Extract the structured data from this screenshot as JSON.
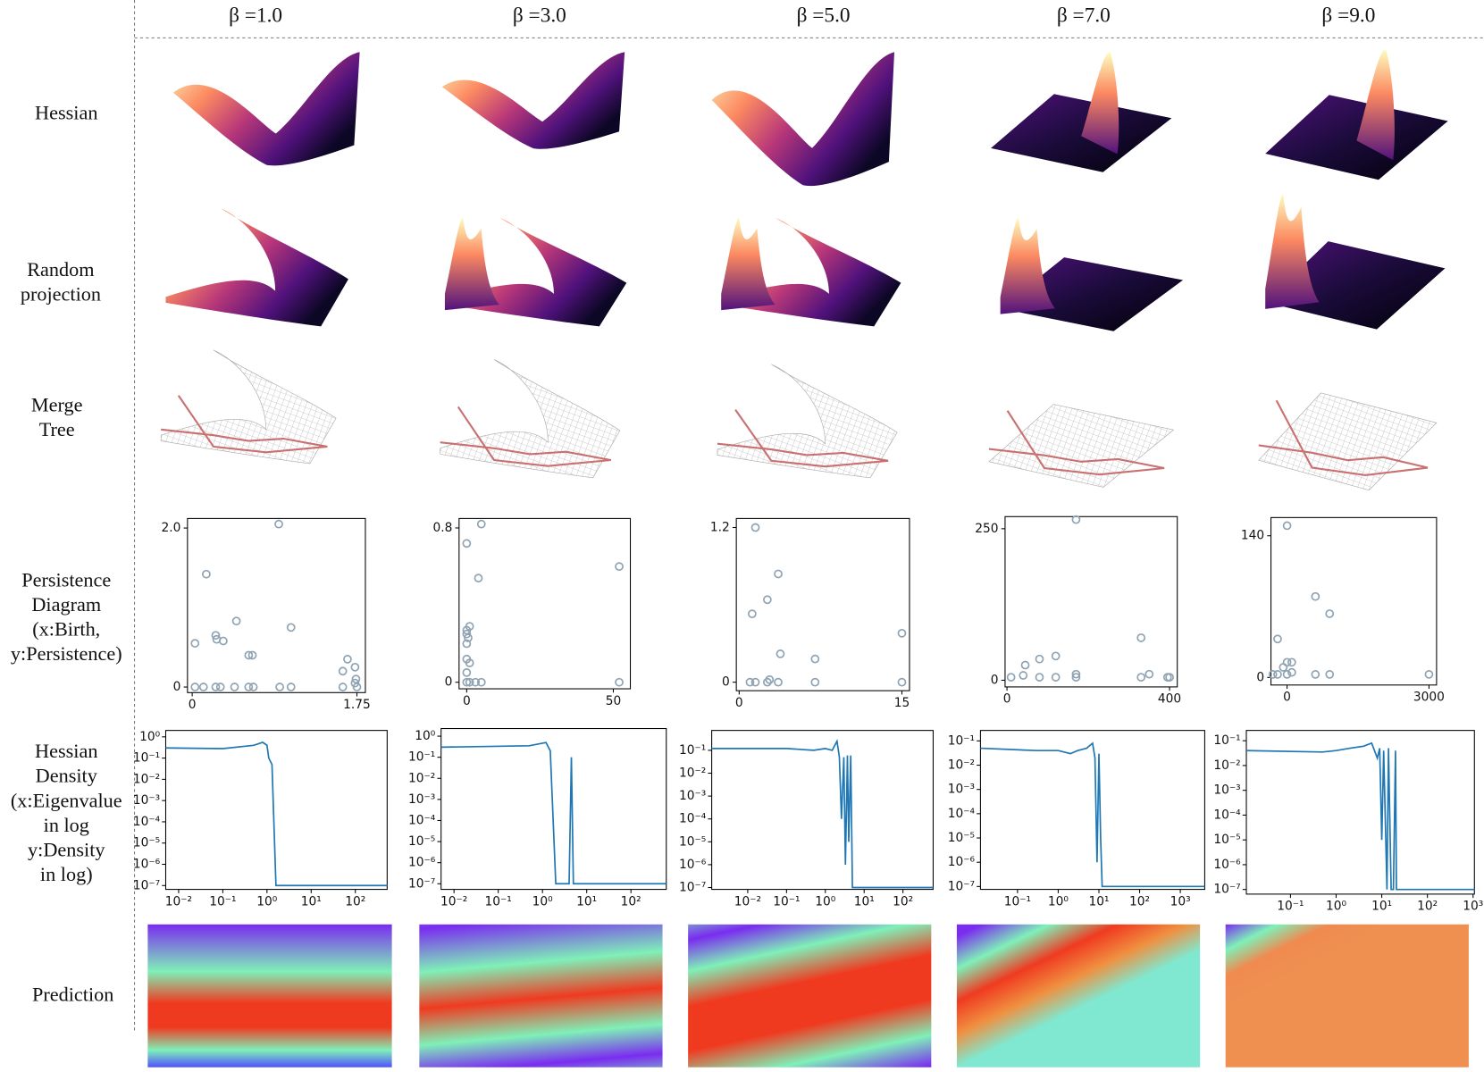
{
  "header": {
    "columns": [
      "β =1.0",
      "β =3.0",
      "β =5.0",
      "β =7.0",
      "β =9.0"
    ]
  },
  "row_labels": [
    [
      "Hessian"
    ],
    [
      "Random",
      "projection"
    ],
    [
      "Merge",
      "Tree"
    ],
    [
      "Persistence",
      "Diagram",
      "(x:Birth,",
      "y:Persistence)"
    ],
    [
      "Hessian",
      "Density",
      "(x:Eigenvalue",
      "in log",
      "y:Density",
      "in log)"
    ],
    [
      "Prediction"
    ]
  ],
  "persistence_diagrams": [
    {
      "xlim": [
        -0.05,
        1.84
      ],
      "ylim": [
        -0.07,
        2.12
      ],
      "xticks": [
        0,
        1.75
      ],
      "yticks": [
        0,
        {
          "value": 2,
          "label": "2.0"
        }
      ],
      "color": "#8fa3b3",
      "x": [
        0.03,
        0.15,
        0.25,
        0.26,
        0.33,
        0.47,
        0.6,
        0.64,
        0.92,
        1.05,
        1.6,
        1.65,
        1.73,
        1.74,
        1.73,
        0.03,
        0.12,
        0.25,
        0.3,
        0.45,
        0.6,
        0.65,
        0.93,
        1.05,
        1.6,
        1.75
      ],
      "y": [
        0.55,
        1.42,
        0.65,
        0.6,
        0.58,
        0.83,
        0.4,
        0.4,
        2.05,
        0.75,
        0.2,
        0.35,
        0.25,
        0.1,
        0.05,
        0,
        0,
        0,
        0,
        0,
        0,
        0,
        0,
        0,
        0,
        0
      ]
    },
    {
      "xlim": [
        -2.6,
        55.8
      ],
      "ylim": [
        -0.034,
        0.849
      ],
      "xticks": [
        0,
        50
      ],
      "yticks": [
        0,
        0.8
      ],
      "color": "#8fa3b3",
      "x": [
        0,
        5,
        4,
        0,
        0,
        0.5,
        1,
        0,
        0,
        1,
        0,
        52,
        52,
        0,
        1,
        3,
        5
      ],
      "y": [
        0.72,
        0.82,
        0.54,
        0.27,
        0.25,
        0.23,
        0.29,
        0.2,
        0.12,
        0.1,
        0.05,
        0.6,
        0,
        0,
        0,
        0,
        0
      ]
    },
    {
      "xlim": [
        -0.26,
        15.7
      ],
      "ylim": [
        -0.066,
        1.27
      ],
      "xticks": [
        0,
        15
      ],
      "yticks": [
        0,
        1.2
      ],
      "color": "#8fa3b3",
      "x": [
        1.5,
        3.6,
        2.6,
        1.2,
        3.8,
        7,
        15,
        1,
        1.5,
        2.6,
        2.8,
        3.6,
        7,
        15
      ],
      "y": [
        1.2,
        0.84,
        0.64,
        0.53,
        0.22,
        0.18,
        0.38,
        0,
        0,
        0,
        0.02,
        0,
        0,
        0
      ]
    },
    {
      "xlim": [
        -4.7,
        419
      ],
      "ylim": [
        -11,
        270
      ],
      "xticks": [
        0,
        400
      ],
      "yticks": [
        0,
        250
      ],
      "color": "#8fa3b3",
      "x": [
        170,
        45,
        80,
        120,
        330,
        40,
        10,
        80,
        120,
        170,
        170,
        330,
        350,
        400,
        395
      ],
      "y": [
        265,
        25,
        35,
        40,
        70,
        8,
        5,
        5,
        5,
        10,
        5,
        5,
        10,
        5,
        5
      ]
    },
    {
      "xlim": [
        -340,
        3160
      ],
      "ylim": [
        -7.5,
        158
      ],
      "xticks": [
        0,
        3000
      ],
      "yticks": [
        0,
        140
      ],
      "color": "#8fa3b3",
      "x": [
        0,
        600,
        900,
        -200,
        -80,
        0,
        100,
        -300,
        -200,
        0,
        100,
        600,
        900,
        3000
      ],
      "y": [
        150,
        80,
        63,
        38,
        10,
        15,
        15,
        3,
        3,
        3,
        5,
        3,
        3,
        3
      ]
    }
  ],
  "hessian_density": [
    {
      "log": true,
      "color": "#1f77b4",
      "xlim": [
        0.0051,
        525
      ],
      "ylim": [
        6.6e-08,
        2.0
      ],
      "xticks": [
        {
          "value": 0.01,
          "label": "10⁻²"
        },
        {
          "value": 0.1,
          "label": "10⁻¹"
        },
        {
          "value": 1,
          "label": "10⁰"
        },
        {
          "value": 10,
          "label": "10¹"
        },
        {
          "value": 100,
          "label": "10²"
        }
      ],
      "yticks": [
        {
          "value": 1,
          "label": "10⁰"
        },
        {
          "value": 0.1,
          "label": "10⁻¹"
        },
        {
          "value": 0.01,
          "label": "10⁻²"
        },
        {
          "value": 0.001,
          "label": "10⁻³"
        },
        {
          "value": 0.0001,
          "label": "10⁻⁴"
        },
        {
          "value": 1e-05,
          "label": "10⁻⁵"
        },
        {
          "value": 1e-06,
          "label": "10⁻⁶"
        },
        {
          "value": 1e-07,
          "label": "10⁻⁷"
        }
      ],
      "x": [
        0.0051,
        0.1,
        0.5,
        0.8,
        1.0,
        1.1,
        1.3,
        1.6,
        525
      ],
      "y": [
        0.3,
        0.28,
        0.4,
        0.55,
        0.4,
        0.1,
        0.05,
        1e-07,
        1e-07
      ]
    },
    {
      "log": true,
      "color": "#1f77b4",
      "xlim": [
        0.0051,
        630
      ],
      "ylim": [
        5.4e-08,
        2.3
      ],
      "xticks": [
        {
          "value": 0.01,
          "label": "10⁻²"
        },
        {
          "value": 0.1,
          "label": "10⁻¹"
        },
        {
          "value": 1,
          "label": "10⁰"
        },
        {
          "value": 10,
          "label": "10¹"
        },
        {
          "value": 100,
          "label": "10²"
        }
      ],
      "yticks": [
        {
          "value": 1,
          "label": "10⁰"
        },
        {
          "value": 0.1,
          "label": "10⁻¹"
        },
        {
          "value": 0.01,
          "label": "10⁻²"
        },
        {
          "value": 0.001,
          "label": "10⁻³"
        },
        {
          "value": 0.0001,
          "label": "10⁻⁴"
        },
        {
          "value": 1e-05,
          "label": "10⁻⁵"
        },
        {
          "value": 1e-06,
          "label": "10⁻⁶"
        },
        {
          "value": 1e-07,
          "label": "10⁻⁷"
        }
      ],
      "x": [
        0.0051,
        0.5,
        1.2,
        1.5,
        2,
        4,
        4.5,
        5,
        630
      ],
      "y": [
        0.3,
        0.35,
        0.5,
        0.2,
        1e-07,
        1e-07,
        0.1,
        1e-07,
        1e-07
      ]
    },
    {
      "log": true,
      "color": "#1f77b4",
      "xlim": [
        0.00118,
        600
      ],
      "ylim": [
        8.3e-08,
        0.74
      ],
      "xticks": [
        {
          "value": 0.01,
          "label": "10⁻²"
        },
        {
          "value": 0.1,
          "label": "10⁻¹"
        },
        {
          "value": 1,
          "label": "10⁰"
        },
        {
          "value": 10,
          "label": "10¹"
        },
        {
          "value": 100,
          "label": "10²"
        }
      ],
      "yticks": [
        {
          "value": 0.1,
          "label": "10⁻¹"
        },
        {
          "value": 0.01,
          "label": "10⁻²"
        },
        {
          "value": 0.001,
          "label": "10⁻³"
        },
        {
          "value": 0.0001,
          "label": "10⁻⁴"
        },
        {
          "value": 1e-05,
          "label": "10⁻⁵"
        },
        {
          "value": 1e-06,
          "label": "10⁻⁶"
        },
        {
          "value": 1e-07,
          "label": "10⁻⁷"
        }
      ],
      "x": [
        0.00118,
        0.1,
        0.5,
        1,
        1.5,
        2,
        2.3,
        2.6,
        3,
        3.3,
        3.7,
        4,
        4.5,
        5,
        600
      ],
      "y": [
        0.12,
        0.12,
        0.1,
        0.12,
        0.1,
        0.25,
        0.05,
        0.0001,
        0.05,
        1e-06,
        0.06,
        1e-05,
        0.06,
        1e-07,
        1e-07
      ]
    },
    {
      "log": true,
      "color": "#1f77b4",
      "xlim": [
        0.0123,
        3980
      ],
      "ylim": [
        7.6e-08,
        0.27
      ],
      "xticks": [
        {
          "value": 0.1,
          "label": "10⁻¹"
        },
        {
          "value": 1,
          "label": "10⁰"
        },
        {
          "value": 10,
          "label": "10¹"
        },
        {
          "value": 100,
          "label": "10²"
        },
        {
          "value": 1000,
          "label": "10³"
        }
      ],
      "yticks": [
        {
          "value": 0.1,
          "label": "10⁻¹"
        },
        {
          "value": 0.01,
          "label": "10⁻²"
        },
        {
          "value": 0.001,
          "label": "10⁻³"
        },
        {
          "value": 0.0001,
          "label": "10⁻⁴"
        },
        {
          "value": 1e-05,
          "label": "10⁻⁵"
        },
        {
          "value": 1e-06,
          "label": "10⁻⁶"
        },
        {
          "value": 1e-07,
          "label": "10⁻⁷"
        }
      ],
      "x": [
        0.0123,
        0.3,
        1,
        2,
        3,
        5,
        7,
        8,
        9,
        10,
        11,
        12,
        3980
      ],
      "y": [
        0.05,
        0.04,
        0.04,
        0.03,
        0.04,
        0.05,
        0.08,
        0.02,
        1e-06,
        0.03,
        1e-05,
        1e-07,
        1e-07
      ]
    },
    {
      "log": true,
      "color": "#1f77b4",
      "xlim": [
        0.0108,
        1070
      ],
      "ylim": [
        6.5e-08,
        0.26
      ],
      "xticks": [
        {
          "value": 0.1,
          "label": "10⁻¹"
        },
        {
          "value": 1,
          "label": "10⁰"
        },
        {
          "value": 10,
          "label": "10¹"
        },
        {
          "value": 100,
          "label": "10²"
        },
        {
          "value": 1000,
          "label": "10³"
        }
      ],
      "yticks": [
        {
          "value": 0.1,
          "label": "10⁻¹"
        },
        {
          "value": 0.01,
          "label": "10⁻²"
        },
        {
          "value": 0.001,
          "label": "10⁻³"
        },
        {
          "value": 0.0001,
          "label": "10⁻⁴"
        },
        {
          "value": 1e-05,
          "label": "10⁻⁵"
        },
        {
          "value": 1e-06,
          "label": "10⁻⁶"
        },
        {
          "value": 1e-07,
          "label": "10⁻⁷"
        }
      ],
      "x": [
        0.0108,
        0.5,
        1,
        2,
        4,
        6,
        8,
        9,
        10,
        11,
        13,
        14,
        16,
        18,
        20,
        21,
        1070
      ],
      "y": [
        0.04,
        0.035,
        0.04,
        0.05,
        0.06,
        0.08,
        0.02,
        0.05,
        1e-05,
        0.04,
        1e-07,
        0.05,
        1e-07,
        1e-07,
        0.04,
        1e-07,
        1e-07
      ]
    }
  ]
}
